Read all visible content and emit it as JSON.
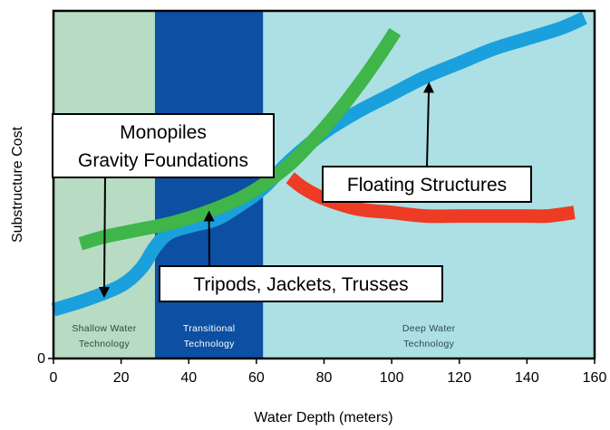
{
  "chart_data": {
    "type": "line",
    "title": "",
    "xlabel": "Water Depth (meters)",
    "ylabel": "Substructure Cost",
    "xlim": [
      0,
      160
    ],
    "ylim": [
      0,
      100
    ],
    "x_ticks": [
      "0",
      "20",
      "40",
      "60",
      "80",
      "100",
      "120",
      "140",
      "160"
    ],
    "y_ticks": [
      "0"
    ],
    "grid": false,
    "zones": [
      {
        "name": "shallow",
        "x_range": [
          0,
          30
        ],
        "label": [
          "Shallow Water",
          "Technology"
        ],
        "color": "#b7dcc3",
        "text_color": "#2a4a35"
      },
      {
        "name": "transitional",
        "x_range": [
          30,
          62
        ],
        "label": [
          "Transitional",
          "Technology"
        ],
        "color": "#0c4fa3",
        "text_color": "#ffffff"
      },
      {
        "name": "deep",
        "x_range": [
          62,
          160
        ],
        "label": [
          "Deep Water",
          "Technology"
        ],
        "color": "#ade0e4",
        "text_color": "#2a4a55"
      }
    ],
    "series": [
      {
        "key": "blue",
        "color": "#1aa0dc",
        "x": [
          0,
          10,
          20,
          26,
          30,
          34,
          40,
          48,
          55,
          62,
          70,
          80,
          90,
          100,
          110,
          120,
          130,
          140,
          150,
          157
        ],
        "values": [
          14,
          17,
          21,
          26,
          32,
          36,
          38,
          40,
          44,
          49,
          57,
          65,
          71,
          76,
          81,
          85,
          89,
          92,
          95,
          98
        ]
      },
      {
        "key": "green",
        "color": "#3fb54a",
        "x": [
          8,
          15,
          25,
          35,
          45,
          55,
          62,
          70,
          78,
          85,
          92,
          97,
          101
        ],
        "values": [
          33,
          35,
          37,
          39,
          42,
          46,
          50,
          56,
          64,
          72,
          81,
          88,
          94
        ]
      },
      {
        "key": "red",
        "color": "#ee3b24",
        "x": [
          70,
          74,
          80,
          90,
          100,
          110,
          120,
          130,
          140,
          146,
          154
        ],
        "values": [
          52,
          49,
          46,
          43,
          42,
          41,
          41,
          41,
          41,
          41,
          42
        ]
      }
    ],
    "annotations": [
      {
        "name": "monopiles",
        "lines": [
          "Monopiles",
          "Gravity Foundations"
        ],
        "arrow_to": [
          15,
          19
        ]
      },
      {
        "name": "floating",
        "lines": [
          "Floating Structures"
        ],
        "arrow_to": [
          111,
          78
        ]
      },
      {
        "name": "tripods",
        "lines": [
          "Tripods, Jackets, Trusses"
        ],
        "arrow_to": [
          46,
          41
        ]
      }
    ]
  }
}
